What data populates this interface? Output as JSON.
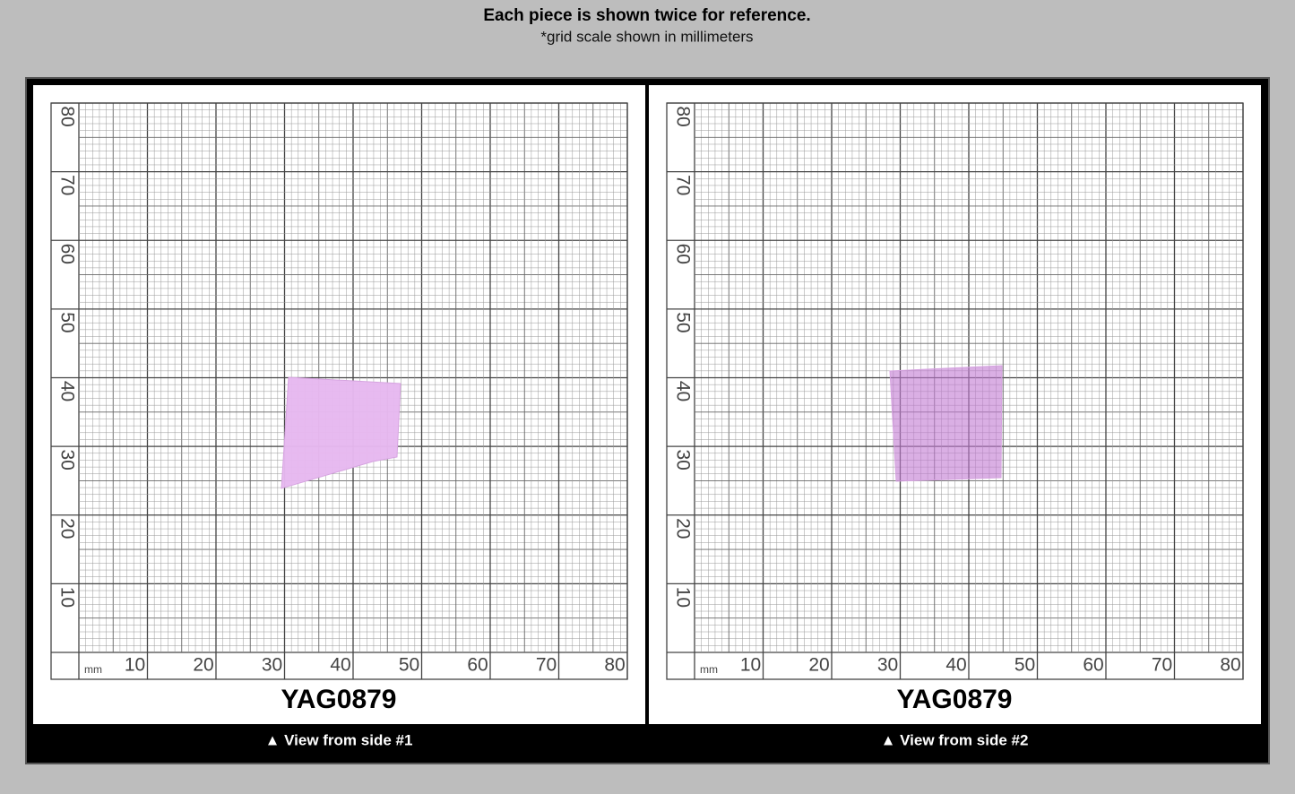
{
  "header": {
    "title": "Each piece is shown twice for reference.",
    "subtitle": "*grid scale shown in millimeters"
  },
  "grid": {
    "unit": "mm",
    "y_labels": [
      "80",
      "70",
      "60",
      "50",
      "40",
      "30",
      "20",
      "10"
    ],
    "x_labels": [
      "10",
      "20",
      "30",
      "40",
      "50",
      "60",
      "70",
      "80"
    ]
  },
  "panels": [
    {
      "label": "YAG0879",
      "caption": "▲ View from side #1"
    },
    {
      "label": "YAG0879",
      "caption": "▲ View from side #2"
    }
  ]
}
